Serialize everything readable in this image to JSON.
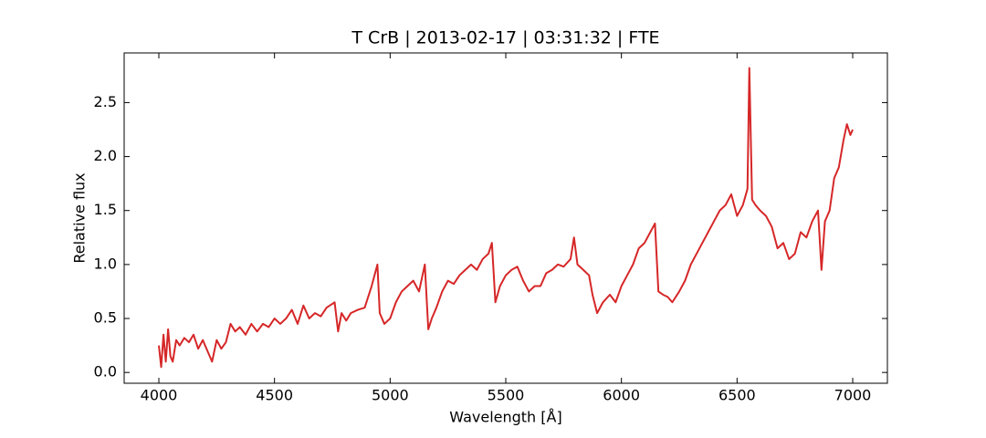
{
  "chart_data": {
    "type": "line",
    "title": "T CrB | 2013-02-17 | 03:31:32 | FTE",
    "x_label": "Wavelength [Å]",
    "y_label": "Relative flux",
    "xlim": [
      3850,
      7150
    ],
    "ylim": [
      -0.1,
      2.96
    ],
    "xticks": [
      4000,
      4500,
      5000,
      5500,
      6000,
      6500,
      7000
    ],
    "yticks": [
      {
        "value": 0,
        "label": "0.0"
      },
      0.5,
      {
        "value": 1,
        "label": "1.0"
      },
      1.5,
      {
        "value": 2,
        "label": "2.0"
      },
      2.5
    ],
    "series": [
      {
        "name": "T CrB",
        "color": "#d62728",
        "x": [
          4000,
          4010,
          4020,
          4030,
          4040,
          4050,
          4060,
          4075,
          4090,
          4110,
          4130,
          4150,
          4170,
          4190,
          4210,
          4230,
          4250,
          4270,
          4290,
          4310,
          4330,
          4350,
          4375,
          4400,
          4425,
          4450,
          4475,
          4500,
          4525,
          4550,
          4575,
          4600,
          4625,
          4650,
          4675,
          4700,
          4725,
          4760,
          4775,
          4790,
          4810,
          4830,
          4860,
          4890,
          4920,
          4945,
          4955,
          4975,
          5000,
          5025,
          5050,
          5075,
          5100,
          5125,
          5150,
          5165,
          5180,
          5200,
          5225,
          5250,
          5275,
          5300,
          5325,
          5350,
          5375,
          5400,
          5425,
          5440,
          5455,
          5475,
          5500,
          5525,
          5550,
          5575,
          5600,
          5625,
          5650,
          5675,
          5700,
          5725,
          5750,
          5780,
          5795,
          5810,
          5835,
          5860,
          5875,
          5895,
          5920,
          5950,
          5975,
          6000,
          6025,
          6050,
          6075,
          6100,
          6125,
          6145,
          6160,
          6180,
          6200,
          6220,
          6250,
          6275,
          6300,
          6325,
          6350,
          6375,
          6400,
          6425,
          6450,
          6475,
          6500,
          6525,
          6545,
          6553,
          6565,
          6580,
          6600,
          6625,
          6650,
          6675,
          6700,
          6725,
          6750,
          6775,
          6800,
          6825,
          6850,
          6865,
          6880,
          6900,
          6920,
          6940,
          6960,
          6975,
          6990,
          7000
        ],
        "values": [
          0.25,
          0.05,
          0.35,
          0.1,
          0.4,
          0.15,
          0.1,
          0.3,
          0.25,
          0.32,
          0.28,
          0.35,
          0.22,
          0.3,
          0.2,
          0.1,
          0.3,
          0.22,
          0.28,
          0.45,
          0.38,
          0.42,
          0.35,
          0.45,
          0.38,
          0.45,
          0.42,
          0.5,
          0.45,
          0.5,
          0.58,
          0.45,
          0.62,
          0.5,
          0.55,
          0.52,
          0.6,
          0.65,
          0.38,
          0.55,
          0.48,
          0.55,
          0.58,
          0.6,
          0.8,
          1.0,
          0.55,
          0.45,
          0.5,
          0.65,
          0.75,
          0.8,
          0.85,
          0.75,
          1.0,
          0.4,
          0.5,
          0.6,
          0.75,
          0.85,
          0.82,
          0.9,
          0.95,
          1.0,
          0.95,
          1.05,
          1.1,
          1.2,
          0.65,
          0.8,
          0.9,
          0.95,
          0.98,
          0.85,
          0.75,
          0.8,
          0.8,
          0.92,
          0.95,
          1.0,
          0.98,
          1.05,
          1.25,
          1.0,
          0.95,
          0.9,
          0.72,
          0.55,
          0.65,
          0.72,
          0.65,
          0.8,
          0.9,
          1.0,
          1.15,
          1.2,
          1.3,
          1.38,
          0.75,
          0.72,
          0.7,
          0.65,
          0.75,
          0.85,
          1.0,
          1.1,
          1.2,
          1.3,
          1.4,
          1.5,
          1.55,
          1.65,
          1.45,
          1.55,
          1.7,
          2.82,
          1.6,
          1.55,
          1.5,
          1.45,
          1.35,
          1.15,
          1.2,
          1.05,
          1.1,
          1.3,
          1.25,
          1.4,
          1.5,
          0.95,
          1.4,
          1.5,
          1.8,
          1.9,
          2.15,
          2.3,
          2.2,
          2.25
        ]
      }
    ]
  }
}
